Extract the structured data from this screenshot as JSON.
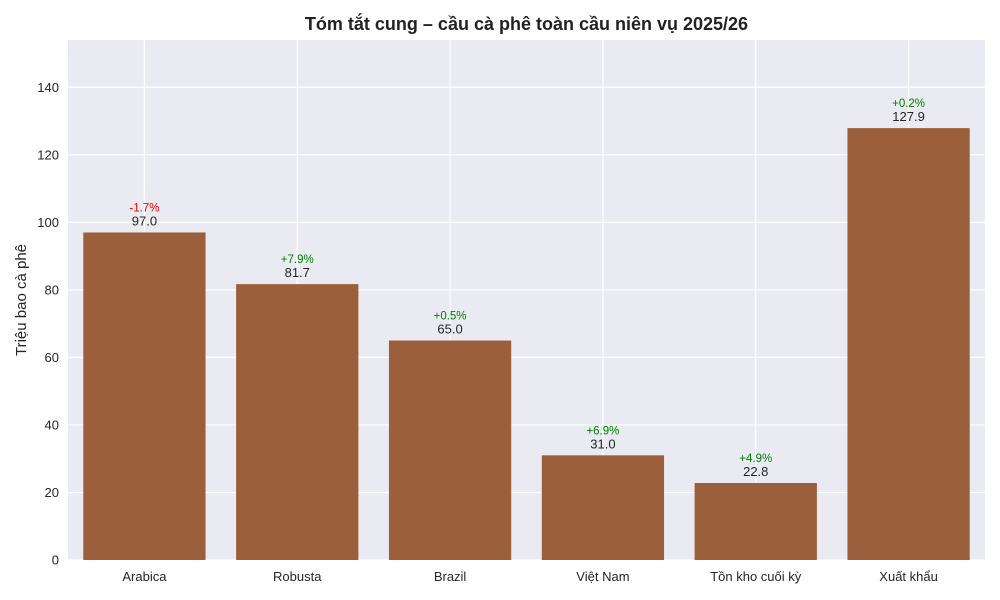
{
  "chart_data": {
    "type": "bar",
    "title": "Tóm tắt cung – cầu cà phê toàn cầu niên vụ 2025/26",
    "xlabel": "",
    "ylabel": "Triệu bao cà phê",
    "ylim": [
      0,
      154
    ],
    "yticks": [
      0,
      20,
      40,
      60,
      80,
      100,
      120,
      140
    ],
    "grid": true,
    "categories": [
      "Arabica",
      "Robusta",
      "Brazil",
      "Việt Nam",
      "Tồn kho cuối kỳ",
      "Xuất khẩu"
    ],
    "values": [
      97.0,
      81.7,
      65.0,
      31.0,
      22.8,
      127.9
    ],
    "value_labels": [
      "97.0",
      "81.7",
      "65.0",
      "31.0",
      "22.8",
      "127.9"
    ],
    "change_labels": [
      "-1.7%",
      "+7.9%",
      "+0.5%",
      "+6.9%",
      "+4.9%",
      "+0.2%"
    ],
    "colors": {
      "bar": "#9c5f3b",
      "background": "#eaeaf2",
      "grid": "#ffffff",
      "positive": "#008000",
      "negative": "#ff0000"
    }
  }
}
